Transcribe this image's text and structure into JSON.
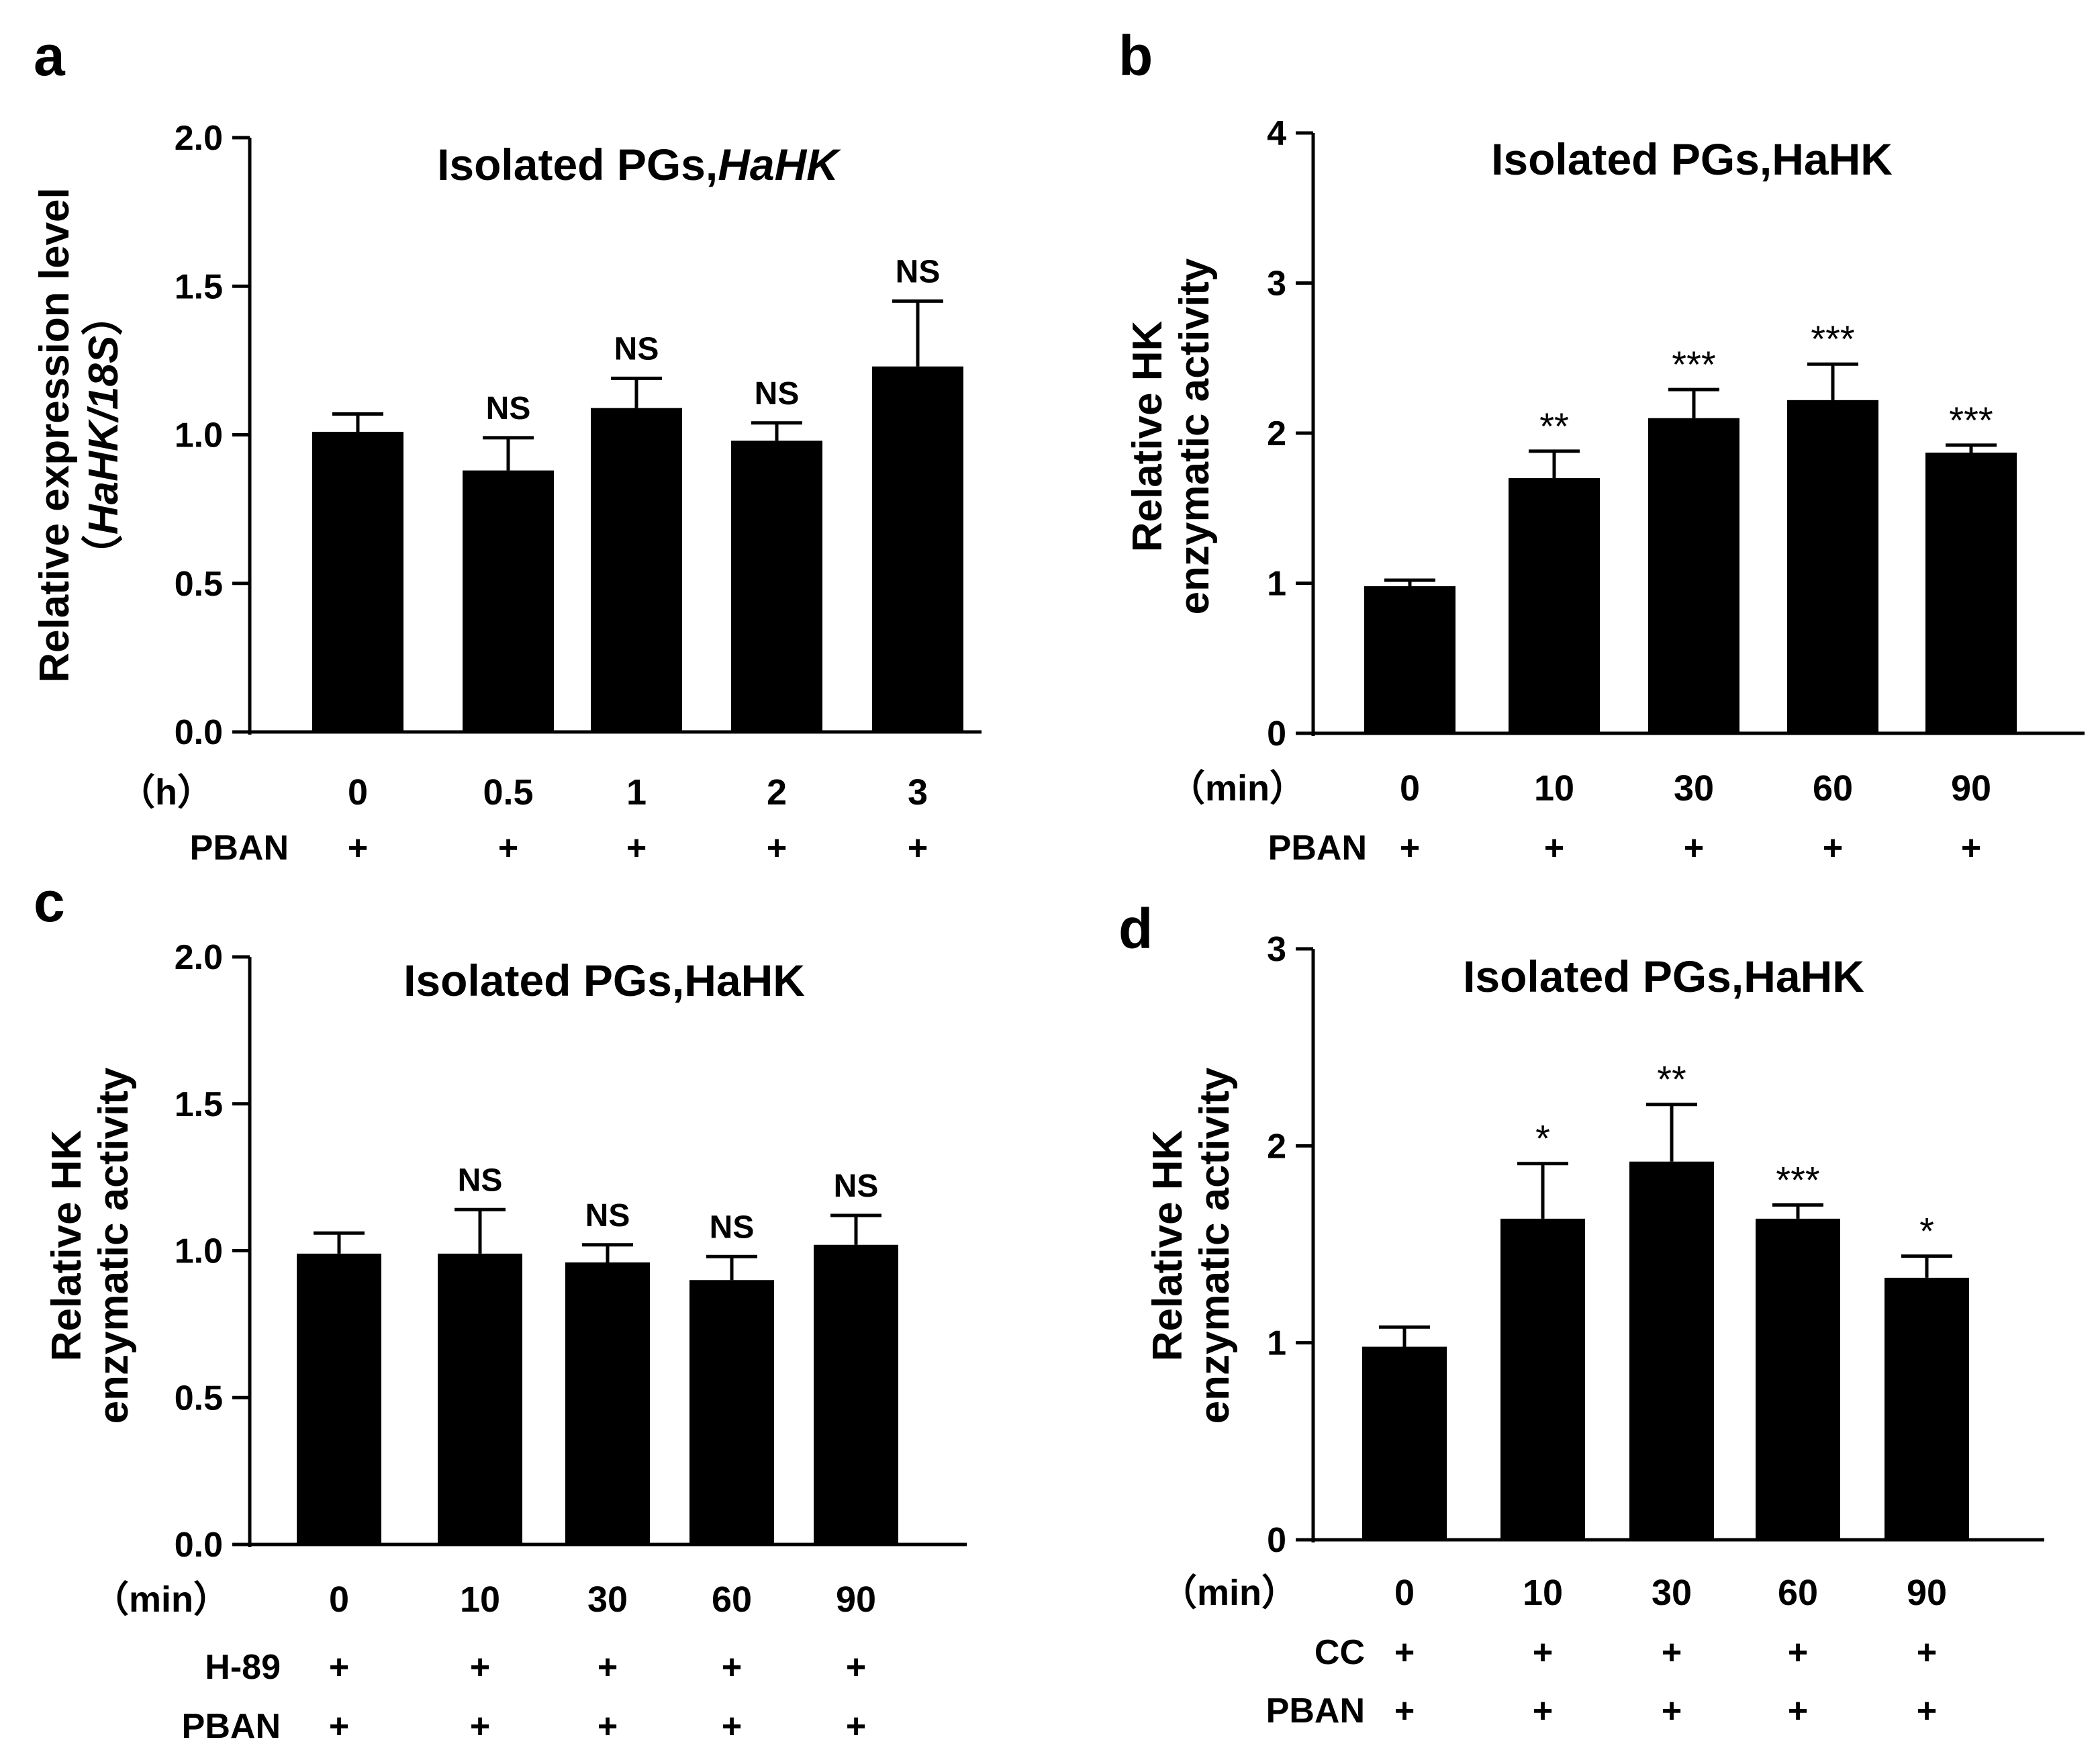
{
  "colors": {
    "bar": "#000000",
    "axis": "#000000",
    "background": "#ffffff"
  },
  "chart_data": [
    {
      "id": "a",
      "panel_label": "a",
      "type": "bar",
      "title": "Isolated PGs,",
      "title_italic": "HaHK",
      "ylabel_line1": "Relative expression level",
      "ylabel_line2_open": "（",
      "ylabel_line2_italic": "HaHK/18S",
      "ylabel_line2_close": "）",
      "unit_label": "（h）",
      "categories": [
        "0",
        "0.5",
        "1",
        "2",
        "3"
      ],
      "values": [
        1.01,
        0.88,
        1.09,
        0.98,
        1.23
      ],
      "errors": [
        0.06,
        0.11,
        0.1,
        0.06,
        0.22
      ],
      "significance": [
        "",
        "NS",
        "NS",
        "NS",
        "NS"
      ],
      "yticks": [
        "0.0",
        "0.5",
        "1.0",
        "1.5",
        "2.0"
      ],
      "ylim": [
        0,
        2.0
      ],
      "treatments": [
        {
          "name": "PBAN",
          "marks": [
            "+",
            "+",
            "+",
            "+",
            "+"
          ]
        }
      ]
    },
    {
      "id": "b",
      "panel_label": "b",
      "type": "bar",
      "title": "Isolated PGs,HaHK",
      "ylabel_line1": "Relative HK",
      "ylabel_line2": "enzymatic activity",
      "unit_label": "（min）",
      "categories": [
        "0",
        "10",
        "30",
        "60",
        "90"
      ],
      "values": [
        0.98,
        1.7,
        2.1,
        2.22,
        1.87
      ],
      "errors": [
        0.04,
        0.18,
        0.19,
        0.24,
        0.05
      ],
      "significance": [
        "",
        "**",
        "***",
        "***",
        "***"
      ],
      "yticks": [
        "0",
        "1",
        "2",
        "3",
        "4"
      ],
      "ylim": [
        0,
        4
      ],
      "treatments": [
        {
          "name": "PBAN",
          "marks": [
            "+",
            "+",
            "+",
            "+",
            "+"
          ]
        }
      ]
    },
    {
      "id": "c",
      "panel_label": "c",
      "type": "bar",
      "title": "Isolated PGs,HaHK",
      "ylabel_line1": "Relative HK",
      "ylabel_line2": "enzymatic activity",
      "unit_label": "（min）",
      "categories": [
        "0",
        "10",
        "30",
        "60",
        "90"
      ],
      "values": [
        0.99,
        0.99,
        0.96,
        0.9,
        1.02
      ],
      "errors": [
        0.07,
        0.15,
        0.06,
        0.08,
        0.1
      ],
      "significance": [
        "",
        "NS",
        "NS",
        "NS",
        "NS"
      ],
      "yticks": [
        "0.0",
        "0.5",
        "1.0",
        "1.5",
        "2.0"
      ],
      "ylim": [
        0,
        2.0
      ],
      "treatments": [
        {
          "name": "H-89",
          "marks": [
            "+",
            "+",
            "+",
            "+",
            "+"
          ]
        },
        {
          "name": "PBAN",
          "marks": [
            "+",
            "+",
            "+",
            "+",
            "+"
          ]
        }
      ]
    },
    {
      "id": "d",
      "panel_label": "d",
      "type": "bar",
      "title": "Isolated PGs,HaHK",
      "ylabel_line1": "Relative HK",
      "ylabel_line2": "enzymatic activity",
      "unit_label": "（min）",
      "categories": [
        "0",
        "10",
        "30",
        "60",
        "90"
      ],
      "values": [
        0.98,
        1.63,
        1.92,
        1.63,
        1.33
      ],
      "errors": [
        0.1,
        0.28,
        0.29,
        0.07,
        0.11
      ],
      "significance": [
        "",
        "*",
        "**",
        "***",
        "*"
      ],
      "yticks": [
        "0",
        "1",
        "2",
        "3"
      ],
      "ylim": [
        0,
        3
      ],
      "treatments": [
        {
          "name": "CC",
          "marks": [
            "+",
            "+",
            "+",
            "+",
            "+"
          ]
        },
        {
          "name": "PBAN",
          "marks": [
            "+",
            "+",
            "+",
            "+",
            "+"
          ]
        }
      ]
    }
  ]
}
